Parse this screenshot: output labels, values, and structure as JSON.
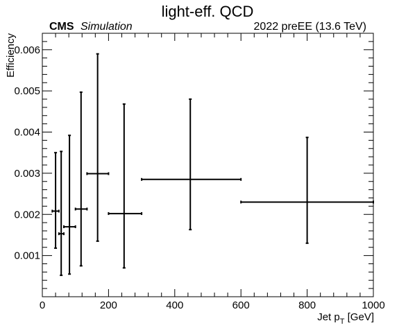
{
  "chart_data": {
    "type": "scatter",
    "title": "light-eff. QCD",
    "cms_label": "CMS",
    "cms_sublabel": "Simulation",
    "energy_label": "2022 preEE (13.6 TeV)",
    "xlabel_main": "Jet p",
    "xlabel_sub": "T",
    "xlabel_unit": " [GeV]",
    "ylabel": "Efficiency",
    "xlim": [
      0,
      1000
    ],
    "ylim": [
      0,
      0.0064
    ],
    "x_ticks": [
      0,
      200,
      400,
      600,
      800,
      1000
    ],
    "y_ticks": [
      0.001,
      0.002,
      0.003,
      0.004,
      0.005,
      0.006
    ],
    "x_tick_labels": [
      "0",
      "200",
      "400",
      "600",
      "800",
      "1000"
    ],
    "y_tick_labels": [
      "0.001",
      "0.002",
      "0.003",
      "0.004",
      "0.005",
      "0.006"
    ],
    "grid": false,
    "legend": "none",
    "color": "#000000",
    "points": [
      {
        "x": 40,
        "xlo": 30,
        "xhi": 50,
        "y": 0.00208,
        "ylo": 0.00118,
        "yhi": 0.0035
      },
      {
        "x": 57,
        "xlo": 50,
        "xhi": 65,
        "y": 0.00153,
        "ylo": 0.00052,
        "yhi": 0.00353
      },
      {
        "x": 82,
        "xlo": 65,
        "xhi": 100,
        "y": 0.0017,
        "ylo": 0.00055,
        "yhi": 0.00392
      },
      {
        "x": 117,
        "xlo": 100,
        "xhi": 135,
        "y": 0.00213,
        "ylo": 0.00075,
        "yhi": 0.00497
      },
      {
        "x": 167,
        "xlo": 135,
        "xhi": 200,
        "y": 0.00299,
        "ylo": 0.00135,
        "yhi": 0.0059
      },
      {
        "x": 247,
        "xlo": 200,
        "xhi": 300,
        "y": 0.00202,
        "ylo": 0.0007,
        "yhi": 0.00468
      },
      {
        "x": 447,
        "xlo": 300,
        "xhi": 600,
        "y": 0.00285,
        "ylo": 0.00163,
        "yhi": 0.0048
      },
      {
        "x": 800,
        "xlo": 600,
        "xhi": 1000,
        "y": 0.0023,
        "ylo": 0.0013,
        "yhi": 0.00387
      }
    ]
  }
}
